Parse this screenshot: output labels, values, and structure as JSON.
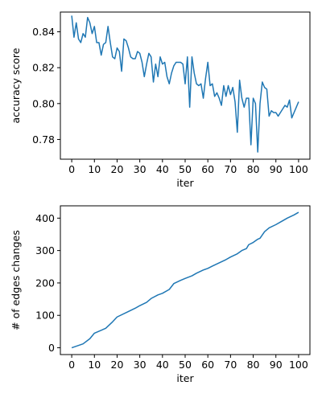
{
  "chart_data": [
    {
      "type": "line",
      "xlabel": "iter",
      "ylabel": "accuracy score",
      "xlim": [
        -5,
        105
      ],
      "ylim": [
        0.769,
        0.851
      ],
      "xticks": [
        0,
        10,
        20,
        30,
        40,
        50,
        60,
        70,
        80,
        90,
        100
      ],
      "xtick_labels": [
        "0",
        "10",
        "20",
        "30",
        "40",
        "50",
        "60",
        "70",
        "80",
        "90",
        "100"
      ],
      "yticks": [
        0.78,
        0.8,
        0.82,
        0.84
      ],
      "ytick_labels": [
        "0.78",
        "0.80",
        "0.82",
        "0.84"
      ],
      "grid": false,
      "series": [
        {
          "color": "#1f77b4",
          "x": [
            0,
            1,
            2,
            3,
            4,
            5,
            6,
            7,
            8,
            9,
            10,
            11,
            12,
            13,
            14,
            15,
            16,
            17,
            18,
            19,
            20,
            21,
            22,
            23,
            24,
            25,
            26,
            27,
            28,
            29,
            30,
            31,
            32,
            33,
            34,
            35,
            36,
            37,
            38,
            39,
            40,
            41,
            42,
            43,
            44,
            45,
            46,
            47,
            48,
            49,
            50,
            51,
            52,
            53,
            54,
            55,
            56,
            57,
            58,
            59,
            60,
            61,
            62,
            63,
            64,
            65,
            66,
            67,
            68,
            69,
            70,
            71,
            72,
            73,
            74,
            75,
            76,
            77,
            78,
            79,
            80,
            81,
            82,
            83,
            84,
            85,
            86,
            87,
            88,
            89,
            90,
            91,
            92,
            93,
            94,
            95,
            96,
            97,
            98,
            99,
            100
          ],
          "values": [
            0.849,
            0.837,
            0.845,
            0.836,
            0.834,
            0.839,
            0.837,
            0.848,
            0.845,
            0.839,
            0.843,
            0.834,
            0.834,
            0.827,
            0.833,
            0.834,
            0.843,
            0.834,
            0.826,
            0.825,
            0.831,
            0.829,
            0.818,
            0.836,
            0.835,
            0.831,
            0.826,
            0.825,
            0.825,
            0.829,
            0.828,
            0.823,
            0.815,
            0.822,
            0.828,
            0.826,
            0.812,
            0.822,
            0.815,
            0.826,
            0.822,
            0.823,
            0.815,
            0.811,
            0.817,
            0.821,
            0.823,
            0.823,
            0.823,
            0.822,
            0.811,
            0.826,
            0.798,
            0.826,
            0.817,
            0.811,
            0.81,
            0.811,
            0.803,
            0.814,
            0.823,
            0.81,
            0.811,
            0.804,
            0.806,
            0.803,
            0.799,
            0.81,
            0.804,
            0.81,
            0.805,
            0.809,
            0.801,
            0.784,
            0.813,
            0.803,
            0.798,
            0.803,
            0.803,
            0.777,
            0.803,
            0.8,
            0.773,
            0.8,
            0.812,
            0.809,
            0.808,
            0.793,
            0.796,
            0.795,
            0.795,
            0.793,
            0.795,
            0.797,
            0.799,
            0.798,
            0.802,
            0.792,
            0.795,
            0.798,
            0.801
          ]
        }
      ]
    },
    {
      "type": "line",
      "xlabel": "iter",
      "ylabel": "# of edges changes",
      "xlim": [
        -5,
        105
      ],
      "ylim": [
        -21,
        438
      ],
      "xticks": [
        0,
        10,
        20,
        30,
        40,
        50,
        60,
        70,
        80,
        90,
        100
      ],
      "xtick_labels": [
        "0",
        "10",
        "20",
        "30",
        "40",
        "50",
        "60",
        "70",
        "80",
        "90",
        "100"
      ],
      "yticks": [
        0,
        100,
        200,
        300,
        400
      ],
      "ytick_labels": [
        "0",
        "100",
        "200",
        "300",
        "400"
      ],
      "grid": false,
      "series": [
        {
          "color": "#1f77b4",
          "x": [
            0,
            5,
            8,
            10,
            15,
            18,
            20,
            25,
            28,
            30,
            33,
            35,
            38,
            40,
            43,
            45,
            48,
            50,
            53,
            55,
            58,
            60,
            62,
            65,
            68,
            70,
            73,
            75,
            77,
            78,
            80,
            82,
            83,
            85,
            87,
            90,
            93,
            95,
            98,
            100
          ],
          "values": [
            0,
            12,
            28,
            45,
            60,
            80,
            95,
            112,
            122,
            130,
            140,
            152,
            163,
            168,
            180,
            198,
            208,
            214,
            222,
            230,
            240,
            245,
            252,
            262,
            272,
            280,
            290,
            300,
            306,
            318,
            325,
            335,
            338,
            358,
            370,
            380,
            392,
            400,
            410,
            418
          ]
        }
      ]
    }
  ]
}
